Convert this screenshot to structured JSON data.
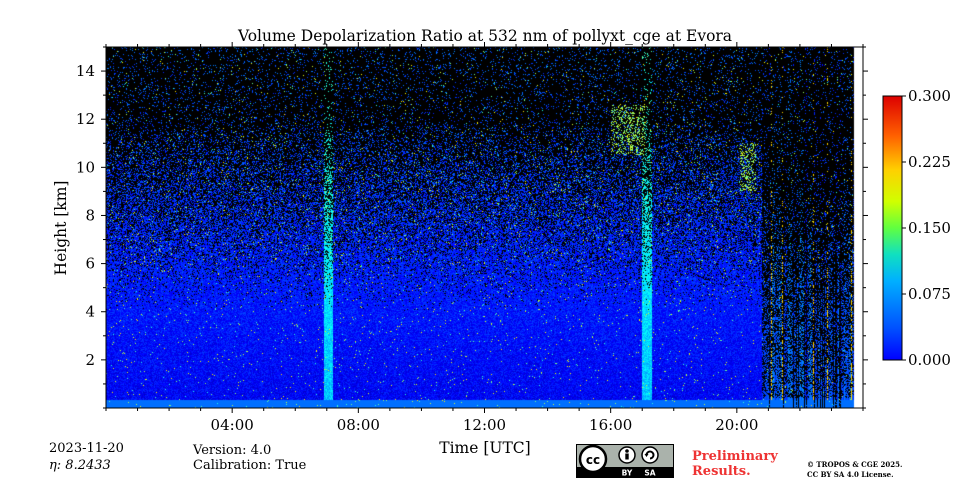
{
  "chart_data": {
    "type": "heatmap",
    "title": "Volume Depolarization Ratio at 532 nm of pollyxt_cge at Evora",
    "xlabel": "Time [UTC]",
    "ylabel": "Height [km]",
    "xlim": [
      0,
      24
    ],
    "ylim": [
      0,
      15
    ],
    "x_ticks": [
      4,
      8,
      12,
      16,
      20
    ],
    "x_tick_labels": [
      "04:00",
      "08:00",
      "12:00",
      "16:00",
      "20:00"
    ],
    "y_ticks": [
      2,
      4,
      6,
      8,
      10,
      12,
      14
    ],
    "y_tick_labels": [
      "2",
      "4",
      "6",
      "8",
      "10",
      "12",
      "14"
    ],
    "colorbar": {
      "vmin": 0.0,
      "vmax": 0.3,
      "ticks": [
        0.0,
        0.075,
        0.15,
        0.225,
        0.3
      ],
      "tick_labels": [
        "0.000",
        "0.075",
        "0.150",
        "0.225",
        "0.300"
      ],
      "colormap": "jet"
    },
    "data_end_time": 23.7,
    "features": [
      {
        "name": "boundary-layer",
        "height_range_km": [
          0,
          5
        ],
        "typical_value": 0.04
      },
      {
        "name": "cloud-1",
        "time_range": [
          16.0,
          17.1
        ],
        "height_range_km": [
          10.5,
          12.6
        ],
        "typical_value": 0.15
      },
      {
        "name": "cloud-2",
        "time_range": [
          20.1,
          20.6
        ],
        "height_range_km": [
          9.0,
          11.0
        ],
        "typical_value": 0.16
      }
    ]
  },
  "info": {
    "date": "2023-11-20",
    "eta": "η: 8.2433",
    "version": "Version: 4.0",
    "calibration": "Calibration: True",
    "preliminary_line1": "Preliminary",
    "preliminary_line2": "Results.",
    "copyright_line1": "© TROPOS & CGE 2025.",
    "copyright_line2": "CC BY SA 4.0 License."
  },
  "license_logo": {
    "cc": "cc",
    "by": "BY",
    "sa": "SA"
  },
  "colors": {
    "preliminary": "#ee3333",
    "missing_data": "#000000"
  }
}
